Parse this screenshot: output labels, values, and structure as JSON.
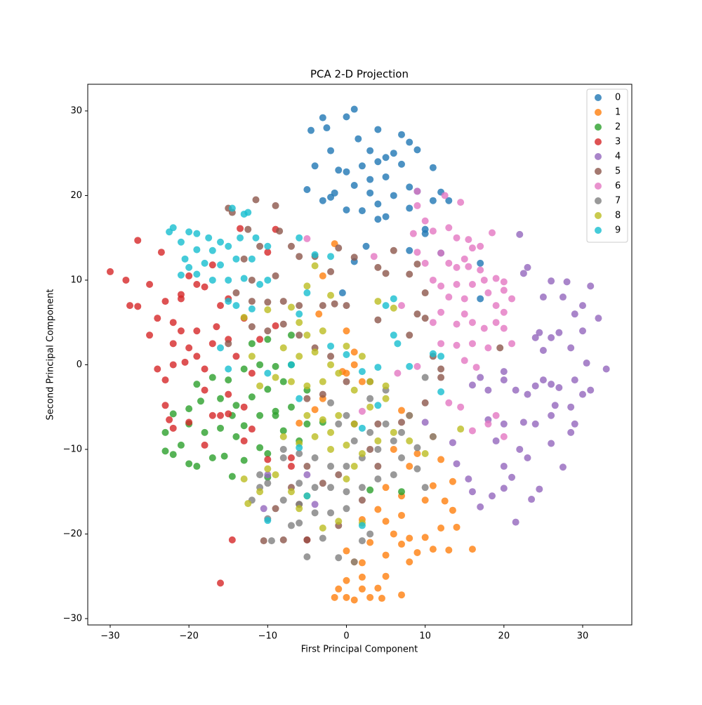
{
  "chart_data": {
    "type": "scatter",
    "title": "PCA 2-D Projection",
    "x_label": "First Principal Component",
    "y_label": "Second Principal Component",
    "xlim": [
      -32.85,
      36.24
    ],
    "ylim": [
      -30.75,
      33.15
    ],
    "xticks": [
      {
        "value": -30,
        "label": "−30"
      },
      {
        "value": -20,
        "label": "−20"
      },
      {
        "value": -10,
        "label": "−10"
      },
      0,
      10,
      20,
      30
    ],
    "yticks": [
      {
        "value": -30,
        "label": "−30"
      },
      {
        "value": -20,
        "label": "−20"
      },
      {
        "value": -10,
        "label": "−10"
      },
      0,
      10,
      20,
      30
    ],
    "grid": false,
    "legend": "upper right",
    "series": [
      {
        "name": "0",
        "color": "#1f77b4",
        "x": [
          1,
          -3,
          0,
          -2.5,
          -4.5,
          4,
          7,
          8,
          1.5,
          -2,
          3,
          6,
          9,
          5,
          -1,
          2,
          4,
          7,
          11,
          -4,
          0,
          3,
          5,
          8,
          1,
          -1.5,
          3,
          6,
          9,
          12,
          -5,
          -2,
          0,
          2,
          4,
          5,
          8,
          10,
          11,
          13,
          -3,
          4,
          10,
          12,
          8,
          1,
          2.5,
          -0.5,
          17,
          17
        ],
        "y": [
          30.2,
          29.2,
          29.3,
          28,
          27.7,
          27.8,
          27.2,
          26.3,
          26.7,
          25.3,
          25.3,
          25,
          25.4,
          24.5,
          23,
          23.5,
          24,
          23.7,
          23.3,
          23.5,
          22.8,
          21.9,
          22.2,
          21,
          21.2,
          20.3,
          20.3,
          20,
          20.5,
          20.4,
          20.7,
          19.8,
          18.3,
          18.2,
          17.2,
          17.5,
          18.5,
          16,
          19.4,
          19.4,
          19.4,
          19,
          15.5,
          13.2,
          13.5,
          12.2,
          14,
          8.5,
          12,
          7.8
        ]
      },
      {
        "name": "1",
        "color": "#ff7f0e",
        "x": [
          0,
          -1.5,
          1,
          3,
          4.5,
          7,
          2,
          4,
          0,
          -1,
          5,
          2,
          1,
          2,
          8,
          9,
          11,
          13,
          16,
          7,
          5,
          0,
          3,
          6,
          8,
          10,
          12,
          14,
          5,
          7,
          4,
          12.5,
          13.5,
          2,
          7,
          10,
          5,
          11,
          13.5,
          12,
          8,
          6,
          9,
          7,
          8,
          -4,
          -6,
          -3,
          0,
          1,
          2,
          -1.5,
          -3,
          -3.5,
          0,
          1,
          11,
          -0.5
        ],
        "y": [
          -27.5,
          -27.5,
          -27.8,
          -27.5,
          -27.6,
          -27.2,
          -26.5,
          -26.4,
          -25.5,
          -26.5,
          -25,
          -25.1,
          -23.3,
          -23.4,
          -23.3,
          -22.2,
          -21.8,
          -21.9,
          -21.8,
          -21.2,
          -22.5,
          -22,
          -21,
          -20,
          -20.5,
          -20.4,
          -19.3,
          -19.2,
          -18.5,
          -17.8,
          -17.1,
          -16.1,
          -17.2,
          -18.3,
          -15.5,
          -16,
          -14.5,
          -14.3,
          -13.8,
          -11.2,
          -12,
          -10,
          -10.5,
          -5.4,
          -6,
          -5.3,
          -6.9,
          -4,
          -1,
          0,
          -2,
          14.3,
          10.5,
          6,
          4,
          1.5,
          -8.5,
          -0.8
        ]
      },
      {
        "name": "2",
        "color": "#2ca02c",
        "x": [
          -23,
          -22,
          -21,
          -20,
          -19,
          -17,
          -15.5,
          -14.5,
          -13,
          -11,
          -10,
          -23,
          -20,
          -18,
          -16,
          -14.5,
          -13,
          -11,
          -9,
          -7,
          -20,
          -18.5,
          -16,
          -14,
          -12,
          -10,
          -8,
          -5,
          -19,
          -17,
          -15,
          -13,
          -11,
          -9,
          -7,
          -12,
          -10,
          -7,
          -9,
          -8,
          -5,
          -3,
          -10,
          3,
          7,
          -22,
          -14,
          -6
        ],
        "y": [
          -10.2,
          -10.6,
          -9.5,
          -11.7,
          -12,
          -11,
          -10.8,
          -13.2,
          -11.3,
          -9.8,
          -10.5,
          -8,
          -7,
          -8,
          -7.5,
          -6,
          -7.2,
          -6,
          -5.5,
          -5,
          -5.2,
          -4.3,
          -4,
          -4.8,
          -3.8,
          -2.9,
          -2,
          -3,
          -2.3,
          -1.5,
          -1.8,
          -0.5,
          0,
          -0.2,
          0,
          2.5,
          3,
          3.5,
          -6,
          -7.8,
          -7,
          -6.8,
          -13.3,
          -14.8,
          -15,
          -5.8,
          -8.5,
          -9
        ]
      },
      {
        "name": "3",
        "color": "#d62728",
        "x": [
          -30,
          -28,
          -27.5,
          -26.5,
          -26.5,
          -25,
          -25,
          -24,
          -23.5,
          -23,
          -22,
          -21,
          -20,
          -19,
          -18,
          -17,
          -16,
          -16.5,
          -15,
          -22,
          -20,
          -19,
          -20.5,
          -24,
          -23,
          -22,
          -18,
          -21,
          -19,
          -17,
          -14,
          -15,
          -18,
          -16,
          -13,
          -12,
          -23,
          -22.5,
          -22,
          -20,
          -17,
          -15,
          -13,
          -10,
          -14.5,
          -16,
          -12,
          -7,
          -5,
          -13,
          -11,
          -9,
          -18,
          -15,
          -21,
          -10,
          -13.5,
          -9,
          -7
        ],
        "y": [
          11,
          10,
          7,
          6.9,
          14.7,
          9.5,
          3.5,
          5.5,
          13.3,
          7.5,
          5,
          8.3,
          10.5,
          9.5,
          9.2,
          11.8,
          7,
          4.5,
          3,
          2.5,
          2,
          1,
          0.3,
          -0.5,
          -1.8,
          0,
          -0.5,
          4,
          4,
          2.5,
          1,
          -3.5,
          -3,
          -6,
          -5,
          -1,
          -4.8,
          -6.5,
          -7.5,
          -6.8,
          -6,
          -5.8,
          -9,
          -11.2,
          -20.7,
          -25.8,
          -7.6,
          -12,
          -20.7,
          5.5,
          3,
          4.6,
          -9.5,
          7.8,
          7.8,
          13.3,
          16.1,
          16,
          -11
        ]
      },
      {
        "name": "4",
        "color": "#9467bd",
        "x": [
          33,
          32,
          31,
          30,
          30,
          29,
          28,
          27.5,
          26,
          25,
          24.5,
          24,
          23,
          22,
          22.5,
          27,
          26,
          25,
          28.5,
          30.5,
          29,
          27,
          26,
          25,
          24,
          23,
          21.5,
          20,
          20,
          18,
          16,
          17,
          26.5,
          28.5,
          30,
          31,
          26,
          24,
          22.5,
          20,
          18,
          19,
          22,
          20,
          23,
          26,
          28.5,
          29,
          27.5,
          24.5,
          23.5,
          21,
          20,
          18.5,
          16,
          17,
          21.5,
          15.5,
          14,
          13.5,
          10,
          -5,
          -10.5,
          -10,
          -4
        ],
        "y": [
          -0.5,
          5.5,
          9.3,
          7,
          4,
          6,
          9.8,
          8,
          9.9,
          8,
          3.8,
          3.2,
          11.5,
          15.4,
          10.8,
          3.8,
          3.2,
          1.7,
          2,
          0.2,
          -1.8,
          -2.7,
          -2.3,
          -1.8,
          -2.5,
          -3.5,
          -3,
          -1.8,
          -0.8,
          -3,
          -2.4,
          -1.5,
          -4.8,
          -5,
          -3.5,
          -3,
          -6,
          -7,
          -6.8,
          -7,
          -6.5,
          -9,
          -10,
          -12,
          -11,
          -9.3,
          -8,
          -7,
          -12.1,
          -14.7,
          -15.9,
          -13.3,
          -14.6,
          -15.5,
          -15,
          -16.8,
          -18.6,
          -13.5,
          -11.7,
          -9.2,
          -6.8,
          -13,
          -17,
          -13,
          -16.5
        ]
      },
      {
        "name": "5",
        "color": "#8c564b",
        "x": [
          -15,
          -14.5,
          -12.5,
          -11.5,
          -9,
          -8.5,
          -7,
          -11,
          -13,
          -12,
          -9,
          -6,
          -4,
          -14,
          -12,
          -10,
          -8,
          -6,
          -3,
          -1.5,
          0,
          -12,
          -10,
          -8,
          -6,
          -4,
          -2,
          0,
          3,
          -3,
          -5,
          -15,
          -2,
          1,
          -1,
          4,
          5,
          6,
          8,
          9,
          10,
          8,
          9,
          10,
          11,
          12,
          10,
          7,
          4,
          1,
          -5,
          -3,
          -6,
          -9,
          -10.5,
          -8,
          -5,
          -1,
          2,
          4,
          19.5,
          4,
          -1,
          -7,
          12,
          3
        ],
        "y": [
          18.5,
          18,
          16,
          19.5,
          18.8,
          15.8,
          14,
          14,
          12.5,
          10,
          10.5,
          12.8,
          12.8,
          8.5,
          7.5,
          7.4,
          7.5,
          7,
          7,
          7.2,
          7,
          4.5,
          4,
          4.8,
          3.5,
          2,
          1,
          -2,
          -2,
          -3.5,
          -4,
          2.5,
          11,
          12.7,
          13.8,
          11.5,
          10.8,
          13.5,
          10.7,
          11.9,
          8.5,
          3.5,
          6,
          5.5,
          1,
          -0.5,
          -4.5,
          -6.8,
          -7,
          -7,
          -12,
          -14,
          -16.5,
          -17,
          -20.8,
          -20.7,
          -20.7,
          -19,
          -16,
          -12,
          2,
          5.3,
          -13,
          -14.5,
          -1.5,
          -10
        ]
      },
      {
        "name": "6",
        "color": "#e377c2",
        "x": [
          9,
          12.5,
          14.5,
          9,
          8.5,
          10,
          11,
          13,
          14,
          15.5,
          17,
          18.5,
          16,
          15,
          12,
          13,
          9,
          10,
          14,
          15.5,
          17,
          17.5,
          19,
          20,
          16,
          14,
          12,
          11,
          13,
          15,
          18,
          20,
          21,
          19,
          20,
          15,
          16,
          14,
          17.5,
          19,
          20,
          12,
          11,
          12,
          14,
          16,
          18,
          21,
          15,
          16.5,
          13,
          14.5,
          16,
          19,
          18,
          20,
          9,
          6.5,
          2,
          7,
          3.5,
          -5
        ],
        "y": [
          20.5,
          20,
          19.2,
          18.8,
          15.5,
          17,
          15.8,
          16.2,
          15,
          14.8,
          14,
          15.6,
          13.8,
          12.5,
          13.2,
          12,
          13.3,
          12,
          11.5,
          11.6,
          11.2,
          10,
          10.2,
          9.8,
          9.5,
          9.5,
          9.3,
          10,
          8,
          7.8,
          8.5,
          8.8,
          7.8,
          7,
          6.2,
          6,
          5,
          4.8,
          4.3,
          5,
          4.3,
          6.2,
          5,
          2.5,
          2.3,
          2.5,
          2,
          2.5,
          0.5,
          -0.3,
          -4.5,
          -5,
          -7.8,
          -6,
          -7,
          -8.5,
          -0.2,
          -1,
          -5.5,
          7,
          12.8,
          14.9
        ]
      },
      {
        "name": "7",
        "color": "#7f7f7f",
        "x": [
          -10,
          -9.5,
          -7,
          -5,
          -3,
          -1,
          1,
          3,
          -2,
          0,
          -6,
          -4,
          -8,
          -6,
          -4,
          -2,
          0,
          2,
          4,
          6,
          7,
          9,
          10,
          9,
          11,
          6,
          4,
          2,
          0,
          -2,
          -4,
          -6,
          -8,
          -10,
          -11,
          -12,
          1,
          3,
          5,
          7,
          8,
          -1,
          0,
          3,
          5,
          10,
          -2,
          -6,
          -8,
          -11,
          2
        ],
        "y": [
          -18.2,
          -20.8,
          -19,
          -22.7,
          -20.5,
          -22.8,
          -23.3,
          -20,
          -17.5,
          -17,
          -18.7,
          -17.5,
          -16,
          -14,
          -14.5,
          -14.5,
          -15,
          -14.5,
          -13.5,
          -13,
          -11,
          -12.3,
          -14.5,
          -9.8,
          -8.5,
          -9,
          -10,
          -11,
          -12,
          -12,
          -11,
          -10.5,
          -11,
          -14,
          -14.5,
          -16,
          -9,
          -8,
          -7,
          -8,
          -6,
          -7,
          -6,
          -4,
          -3,
          -1.5,
          -4.5,
          -16.5,
          -10,
          -13,
          -20.8
        ]
      },
      {
        "name": "8",
        "color": "#bcbd22",
        "x": [
          -13,
          -12.5,
          -11,
          -9,
          -10,
          -7,
          -6,
          -5,
          -3,
          -1,
          2,
          -8,
          -6,
          -4,
          -2,
          0,
          2,
          4,
          6,
          8,
          10,
          14.5,
          -5,
          -3,
          -1,
          1,
          3,
          5,
          -9,
          -7,
          -5,
          -3,
          -1,
          1,
          3,
          5,
          -11,
          -6,
          -4,
          -2,
          0,
          2,
          -8,
          -5,
          -3,
          -7,
          -6,
          -5,
          -4,
          -13,
          -10,
          -2,
          4,
          6,
          -12,
          1,
          -2,
          0
        ],
        "y": [
          -13.5,
          -16.4,
          -15,
          -13,
          -12.3,
          -15,
          -17,
          -15.5,
          -19.3,
          -18.5,
          -18.7,
          -8.5,
          -9.3,
          -8.5,
          -8,
          -9.5,
          -10.5,
          -9,
          -8,
          -9,
          -10.5,
          -7.6,
          -6,
          -6.5,
          -6,
          -7,
          -5,
          -4,
          -1.5,
          -2,
          -2.5,
          -2,
          -1,
          -3,
          -2,
          -2.5,
          -2.5,
          1,
          1.5,
          0,
          2.2,
          1,
          2,
          3.5,
          4,
          6.8,
          5,
          9.3,
          11.7,
          5.6,
          6.5,
          8.2,
          7.5,
          6.7,
          1,
          -12,
          -10,
          -13.5
        ]
      },
      {
        "name": "9",
        "color": "#17becf",
        "x": [
          -22.5,
          -22,
          -20,
          -19,
          -17.5,
          -16,
          -14.5,
          -13,
          -12.5,
          -11.5,
          -10,
          -13.5,
          -15,
          -17,
          -19,
          -21,
          -20.5,
          -18,
          -16,
          -14,
          -12,
          -10,
          -11,
          -13,
          -15,
          -17,
          -19,
          -21,
          -20,
          -12,
          -14,
          -6,
          -4,
          -2,
          -5,
          -6,
          -16,
          -15,
          -10,
          -7,
          -6,
          -2,
          0,
          4,
          5,
          6,
          6,
          6.5,
          8,
          11,
          12,
          2,
          4,
          2,
          -10,
          -5,
          -6,
          2,
          12,
          -15
        ],
        "y": [
          15.7,
          16.2,
          15.7,
          15.5,
          15,
          14.5,
          18.5,
          17.8,
          18,
          15,
          14,
          15,
          14,
          13.5,
          13.6,
          14.5,
          12.5,
          12,
          11.8,
          12.5,
          12.5,
          10,
          9.5,
          10.2,
          10,
          10,
          10.7,
          10.6,
          11.5,
          6.6,
          7,
          15,
          13,
          12.8,
          8.5,
          6,
          2,
          -0.5,
          -1,
          0,
          -4,
          2.2,
          1.2,
          -0.3,
          7,
          7.8,
          3.5,
          2.5,
          -0.2,
          1.3,
          -3.2,
          -0.8,
          -4.8,
          -7.5,
          -18.4,
          -15.5,
          -9.8,
          -19,
          1,
          7.5
        ]
      }
    ]
  }
}
